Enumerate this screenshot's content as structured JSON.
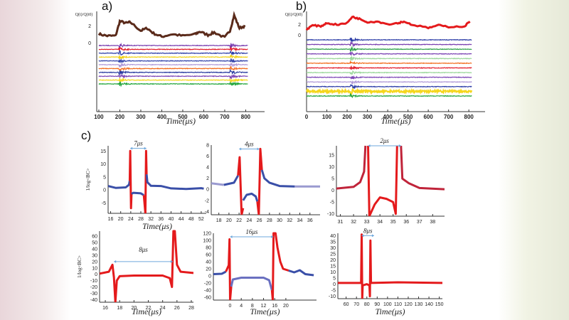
{
  "chart_data": [
    {
      "id": "a",
      "panel_label": "a)",
      "type": "line",
      "ylabel": "Q(t)/Q(t0)",
      "xlabel": "Time(μs)",
      "xlim": [
        90,
        890
      ],
      "xticks": [
        100,
        200,
        300,
        400,
        500,
        600,
        700,
        800
      ],
      "yticks": [
        2,
        0
      ],
      "q_series": {
        "color": "#5a2a1a",
        "points": [
          [
            100,
            1
          ],
          [
            140,
            0.8
          ],
          [
            180,
            0.8
          ],
          [
            200,
            2.5
          ],
          [
            230,
            2.3
          ],
          [
            250,
            2.4
          ],
          [
            300,
            1.4
          ],
          [
            330,
            1.7
          ],
          [
            360,
            1.1
          ],
          [
            400,
            0.7
          ],
          [
            450,
            1
          ],
          [
            500,
            0.8
          ],
          [
            560,
            1
          ],
          [
            580,
            1.3
          ],
          [
            620,
            0.9
          ],
          [
            650,
            1.2
          ],
          [
            700,
            0.6
          ],
          [
            725,
            1.4
          ],
          [
            745,
            3.2
          ],
          [
            770,
            1.7
          ],
          [
            800,
            2.0
          ]
        ]
      },
      "traces": {
        "colors": [
          "#7a3fb0",
          "#e21b2a",
          "#2e3fa8",
          "#f1d21a",
          "#3344aa",
          "#b09ad8",
          "#f26a1b",
          "#2a3ca0",
          "#7c45b5",
          "#f5d61c",
          "#22a53a"
        ],
        "bursts": [
          200,
          730
        ],
        "xrange": [
          100,
          810
        ]
      }
    },
    {
      "id": "b",
      "panel_label": "b)",
      "type": "line",
      "ylabel": "Q(t)/Q(t0)",
      "xlabel": "Time(μs)",
      "xlim": [
        0,
        880
      ],
      "xticks": [
        0,
        100,
        200,
        300,
        400,
        500,
        600,
        700,
        800
      ],
      "yticks": [
        2,
        0
      ],
      "q_series": {
        "color": "#e41a1c",
        "points": [
          [
            0,
            1
          ],
          [
            30,
            1.8
          ],
          [
            70,
            1.6
          ],
          [
            100,
            2.2
          ],
          [
            150,
            1.9
          ],
          [
            200,
            2.2
          ],
          [
            225,
            3.4
          ],
          [
            260,
            3.0
          ],
          [
            300,
            2.4
          ],
          [
            350,
            2.5
          ],
          [
            400,
            2.0
          ],
          [
            450,
            2.2
          ],
          [
            480,
            2.5
          ],
          [
            520,
            1.9
          ],
          [
            600,
            1.3
          ],
          [
            650,
            1.8
          ],
          [
            700,
            1.5
          ],
          [
            780,
            1.6
          ],
          [
            810,
            2.8
          ]
        ]
      },
      "traces": {
        "colors": [
          "#2e3fa8",
          "#7a3fb0",
          "#2ea24a",
          "#7c45b5",
          "#9bd79b",
          "#f26a1b",
          "#e21b2a",
          "#9bd79b",
          "#7c45b5",
          "#b09ad8",
          "#2e3fa8",
          "#f5d61c",
          "#22a53a"
        ],
        "bursts": [
          220
        ],
        "xrange": [
          0,
          815
        ]
      }
    },
    {
      "id": "c1",
      "panel_label": "c)",
      "type": "line",
      "ylabel": "1/log<BC>",
      "xlabel": "Time(μs)",
      "annotation": "7μs",
      "xlim": [
        15,
        54
      ],
      "ylim": [
        -9,
        17
      ],
      "xticks": [
        16,
        20,
        24,
        28,
        32,
        36,
        40,
        44,
        48,
        52
      ],
      "yticks": [
        15,
        10,
        5,
        0,
        -5
      ],
      "span": [
        23.8,
        30.2,
        16
      ],
      "series": [
        {
          "color": "#3a4fa8",
          "points": [
            [
              15,
              1.5
            ],
            [
              18,
              0.8
            ],
            [
              22,
              1
            ],
            [
              23.3,
              2
            ],
            [
              23.6,
              3.5
            ]
          ]
        },
        {
          "color": "#e41a1c",
          "points": [
            [
              23.6,
              3.5
            ],
            [
              23.8,
              15
            ],
            [
              24.1,
              -7
            ],
            [
              24.3,
              -1.5
            ]
          ]
        },
        {
          "color": "#3a4fa8",
          "points": [
            [
              24.3,
              -1.5
            ],
            [
              25,
              -1.1
            ],
            [
              28,
              -1.3
            ],
            [
              29.2,
              -2
            ]
          ]
        },
        {
          "color": "#e41a1c",
          "points": [
            [
              29.2,
              -2
            ],
            [
              29.8,
              -9
            ],
            [
              30.1,
              15
            ],
            [
              30.3,
              6
            ]
          ]
        },
        {
          "color": "#3a4fa8",
          "points": [
            [
              30.3,
              6
            ],
            [
              30.6,
              3
            ],
            [
              32,
              1.6
            ],
            [
              36,
              1.5
            ],
            [
              40,
              0.6
            ],
            [
              46,
              0.4
            ],
            [
              52,
              0.7
            ],
            [
              53,
              0.5
            ]
          ]
        }
      ]
    },
    {
      "id": "c2",
      "type": "line",
      "annotation": "4μs",
      "xlim": [
        16.5,
        38
      ],
      "ylim": [
        -4.6,
        8
      ],
      "xticks": [
        18,
        20,
        22,
        24,
        26,
        28,
        30,
        32,
        34,
        36
      ],
      "yticks": [
        8,
        6,
        4,
        2,
        0,
        -2,
        -4
      ],
      "span": [
        22,
        26,
        7.3
      ],
      "series": [
        {
          "color": "#9a9ad0",
          "points": [
            [
              16.5,
              1.1
            ],
            [
              19,
              0.8
            ]
          ]
        },
        {
          "color": "#3a4fa8",
          "points": [
            [
              19,
              0.8
            ],
            [
              21,
              1.2
            ],
            [
              21.8,
              2.5
            ]
          ]
        },
        {
          "color": "#e41a1c",
          "points": [
            [
              21.8,
              2.5
            ],
            [
              22.1,
              5.8
            ],
            [
              22.5,
              -4.6
            ],
            [
              22.8,
              -3.4
            ]
          ]
        },
        {
          "color": "#3a4fa8",
          "points": [
            [
              22.8,
              -2
            ],
            [
              23.5,
              -1
            ],
            [
              24.5,
              -0.8
            ],
            [
              25.3,
              -1.3
            ],
            [
              25.6,
              -2.2
            ]
          ]
        },
        {
          "color": "#e41a1c",
          "points": [
            [
              25.6,
              -2.2
            ],
            [
              25.9,
              -4.6
            ],
            [
              26.2,
              7.3
            ],
            [
              26.5,
              3.5
            ]
          ]
        },
        {
          "color": "#3a4fa8",
          "points": [
            [
              26.5,
              3.5
            ],
            [
              27,
              2
            ],
            [
              28,
              1.2
            ],
            [
              30,
              0.6
            ],
            [
              33,
              0.5
            ]
          ]
        },
        {
          "color": "#9a9ad0",
          "points": [
            [
              33,
              0.5
            ],
            [
              38,
              0.5
            ]
          ]
        }
      ]
    },
    {
      "id": "c3",
      "type": "line",
      "annotation": "2μs",
      "xlim": [
        30.7,
        38.9
      ],
      "ylim": [
        -11,
        19
      ],
      "xticks": [
        31,
        32,
        33,
        34,
        35,
        36,
        37,
        38
      ],
      "yticks": [
        15,
        10,
        5,
        0,
        -5,
        -10
      ],
      "span": [
        33.1,
        35.6,
        19
      ],
      "series": [
        {
          "color": "#c0243a",
          "points": [
            [
              30.7,
              0.8
            ],
            [
              32,
              1.5
            ],
            [
              32.5,
              3.5
            ],
            [
              32.8,
              8
            ],
            [
              32.9,
              19
            ]
          ]
        },
        {
          "color": "#e41a1c",
          "points": [
            [
              33.1,
              19
            ],
            [
              33.2,
              -11
            ],
            [
              33.6,
              -6
            ],
            [
              34,
              -3
            ],
            [
              34.5,
              -3.6
            ],
            [
              35,
              -5
            ],
            [
              35.2,
              -10
            ],
            [
              35.3,
              19
            ]
          ]
        },
        {
          "color": "#c0243a",
          "points": [
            [
              35.6,
              19
            ],
            [
              35.7,
              5
            ],
            [
              36.2,
              3
            ],
            [
              37,
              1
            ],
            [
              38.9,
              0.5
            ]
          ]
        }
      ]
    },
    {
      "id": "c4",
      "type": "line",
      "ylabel": "1/log<BC>",
      "xlabel": "Time(μs)",
      "annotation": "8μs",
      "xlim": [
        15.2,
        28.3
      ],
      "ylim": [
        -44,
        68
      ],
      "xticks": [
        16,
        18,
        20,
        22,
        24,
        26,
        28
      ],
      "yticks": [
        60,
        50,
        40,
        30,
        20,
        10,
        0,
        -10,
        -20,
        -30,
        -40
      ],
      "span": [
        17.2,
        25.4,
        20
      ],
      "series": [
        {
          "color": "#e41a1c",
          "points": [
            [
              15.2,
              1
            ],
            [
              16.5,
              4
            ],
            [
              17,
              15
            ],
            [
              17.2,
              -5
            ],
            [
              17.4,
              -44
            ],
            [
              17.6,
              -10
            ],
            [
              18,
              -3
            ],
            [
              20,
              -2
            ],
            [
              24,
              -2
            ],
            [
              25,
              -6
            ],
            [
              25.3,
              -20
            ],
            [
              25.5,
              68
            ],
            [
              25.7,
              68
            ],
            [
              26,
              15
            ],
            [
              26.5,
              4
            ],
            [
              28.3,
              2
            ]
          ]
        }
      ]
    },
    {
      "id": "c5",
      "type": "line",
      "xlabel": "Time(μs)",
      "annotation": "16μs",
      "xlim": [
        -6,
        31
      ],
      "ylim": [
        -68,
        120
      ],
      "xticks": [
        0,
        4,
        8,
        12,
        16,
        20
      ],
      "yticks": [
        120,
        100,
        80,
        60,
        40,
        20,
        0,
        -20,
        -40,
        -60
      ],
      "span": [
        0,
        15.5,
        110
      ],
      "series": [
        {
          "color": "#3a4fa8",
          "points": [
            [
              -6,
              5
            ],
            [
              -3,
              6
            ],
            [
              -1.5,
              12
            ]
          ]
        },
        {
          "color": "#e41a1c",
          "points": [
            [
              -1.5,
              12
            ],
            [
              -0.5,
              30
            ],
            [
              -0.2,
              103
            ],
            [
              0,
              -68
            ],
            [
              0.4,
              -30
            ]
          ]
        },
        {
          "color": "#6a70c0",
          "points": [
            [
              0.4,
              -30
            ],
            [
              1,
              -10
            ],
            [
              4,
              -5
            ],
            [
              12,
              -5
            ],
            [
              14,
              -12
            ],
            [
              15,
              -40
            ]
          ]
        },
        {
          "color": "#e41a1c",
          "points": [
            [
              15,
              -40
            ],
            [
              15.3,
              -68
            ],
            [
              15.6,
              120
            ],
            [
              16.3,
              120
            ],
            [
              17,
              80
            ],
            [
              18,
              40
            ],
            [
              19,
              20
            ],
            [
              21,
              15
            ]
          ]
        },
        {
          "color": "#3a4fa8",
          "points": [
            [
              21,
              15
            ],
            [
              23,
              10
            ],
            [
              25,
              16
            ],
            [
              27,
              5
            ],
            [
              30,
              2
            ]
          ]
        }
      ]
    },
    {
      "id": "c6",
      "type": "line",
      "xlabel": "Time(μs)",
      "annotation": "8μs",
      "xlim": [
        52,
        153
      ],
      "ylim": [
        -12,
        42
      ],
      "xticks": [
        60,
        70,
        80,
        90,
        100,
        110,
        120,
        130,
        140,
        150
      ],
      "yticks": [
        40,
        35,
        30,
        25,
        20,
        15,
        10,
        5,
        0,
        -5,
        -10
      ],
      "span": [
        75,
        87,
        40
      ],
      "series": [
        {
          "color": "#e41a1c",
          "points": [
            [
              52,
              1
            ],
            [
              74.5,
              1
            ],
            [
              75,
              41
            ],
            [
              75.6,
              -12
            ],
            [
              76,
              -1
            ],
            [
              80,
              0
            ],
            [
              82.5,
              -1
            ],
            [
              83,
              -10
            ],
            [
              83.5,
              36
            ],
            [
              84,
              1
            ],
            [
              110,
              1.5
            ],
            [
              153,
              1
            ]
          ]
        }
      ]
    }
  ]
}
